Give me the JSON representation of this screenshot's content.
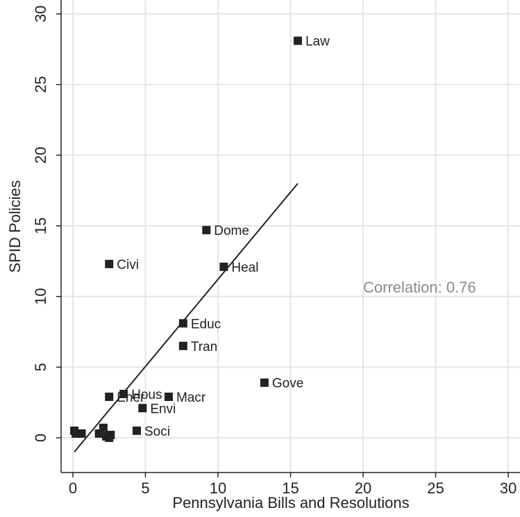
{
  "chart_data": {
    "type": "scatter",
    "xlabel": "Pennsylvania Bills and Resolutions",
    "ylabel": "SPID Policies",
    "xlim": [
      0,
      30
    ],
    "ylim": [
      0,
      30
    ],
    "xticks": [
      0,
      5,
      10,
      15,
      20,
      25,
      30
    ],
    "yticks": [
      0,
      5,
      10,
      15,
      20,
      25,
      30
    ],
    "grid": true,
    "marker_color": "#222222",
    "grid_color": "#e6e6e6",
    "annotation": "Correlation: 0.76",
    "annotation_color": "#8a8a8a",
    "fit_line": {
      "x": [
        0.1,
        15.5
      ],
      "y": [
        -1.0,
        18.0
      ]
    },
    "points": [
      {
        "label": "Law",
        "x": 15.5,
        "y": 28.1
      },
      {
        "label": "Dome",
        "x": 9.2,
        "y": 14.7
      },
      {
        "label": "Civi",
        "x": 2.5,
        "y": 12.3
      },
      {
        "label": "Heal",
        "x": 10.4,
        "y": 12.1
      },
      {
        "label": "Educ",
        "x": 7.6,
        "y": 8.1
      },
      {
        "label": "Tran",
        "x": 7.6,
        "y": 6.5
      },
      {
        "label": "Gove",
        "x": 13.2,
        "y": 3.9
      },
      {
        "label": "Hous",
        "x": 3.5,
        "y": 3.1
      },
      {
        "label": "Ener",
        "x": 2.5,
        "y": 2.9
      },
      {
        "label": "Macr",
        "x": 6.6,
        "y": 2.9
      },
      {
        "label": "Envi",
        "x": 4.8,
        "y": 2.1
      },
      {
        "label": "Soci",
        "x": 4.4,
        "y": 0.5
      },
      {
        "label": "",
        "x": 0.1,
        "y": 0.5
      },
      {
        "label": "",
        "x": 0.2,
        "y": 0.3
      },
      {
        "label": "",
        "x": 0.6,
        "y": 0.3
      },
      {
        "label": "",
        "x": 1.8,
        "y": 0.3
      },
      {
        "label": "",
        "x": 2.1,
        "y": 0.7
      },
      {
        "label": "",
        "x": 2.3,
        "y": 0.1
      },
      {
        "label": "",
        "x": 2.5,
        "y": 0.0
      },
      {
        "label": "",
        "x": 2.6,
        "y": 0.2
      }
    ]
  }
}
